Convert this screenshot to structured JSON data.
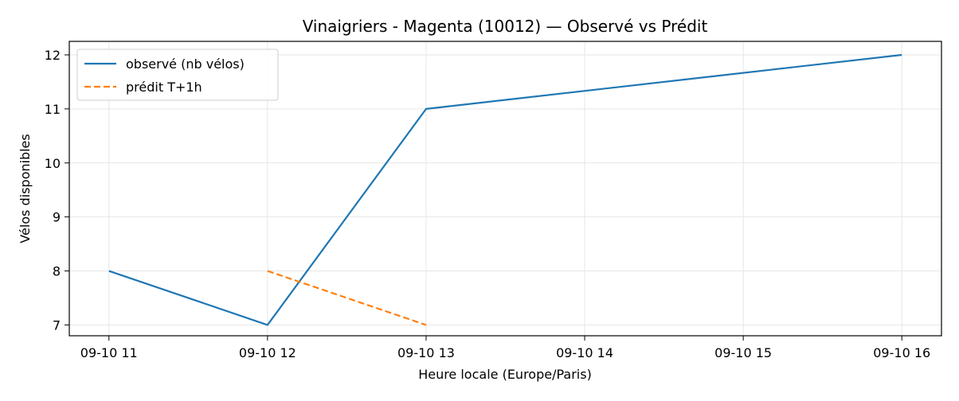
{
  "chart_data": {
    "type": "line",
    "title": "Vinaigriers - Magenta (10012) — Observé vs Prédit",
    "xlabel": "Heure locale (Europe/Paris)",
    "ylabel": "Vélos disponibles",
    "x_ticks": [
      "09-10 11",
      "09-10 12",
      "09-10 13",
      "09-10 14",
      "09-10 15",
      "09-10 16"
    ],
    "y_ticks": [
      7,
      8,
      9,
      10,
      11,
      12
    ],
    "ylim": [
      6.8,
      12.25
    ],
    "xlim": [
      "09-10 10:45",
      "09-10 16:15"
    ],
    "grid": true,
    "legend_position": "top-left",
    "series": [
      {
        "name": "observé (nb vélos)",
        "color": "#1f77b4",
        "style": "solid",
        "x": [
          "09-10 11",
          "09-10 12",
          "09-10 13",
          "09-10 16"
        ],
        "values": [
          8,
          7,
          11,
          12
        ]
      },
      {
        "name": "prédit T+1h",
        "color": "#ff7f0e",
        "style": "dashed",
        "x": [
          "09-10 12",
          "09-10 13"
        ],
        "values": [
          8,
          7
        ]
      }
    ]
  }
}
